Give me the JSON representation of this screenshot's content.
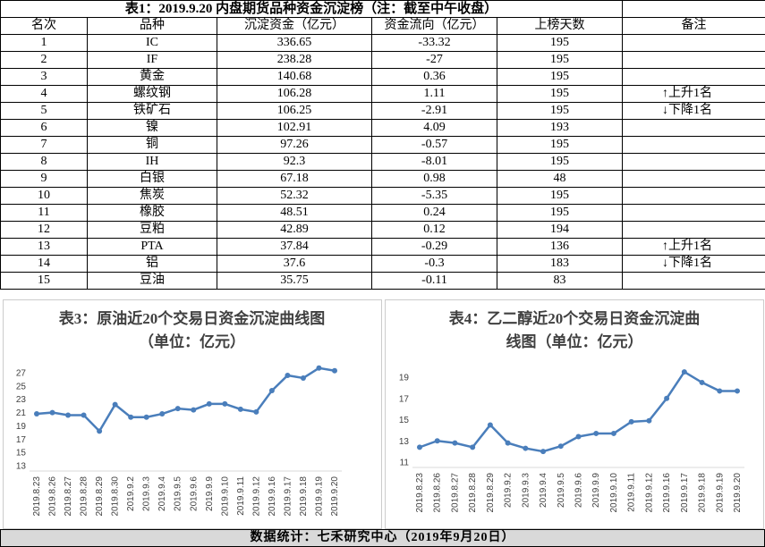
{
  "table": {
    "title": "表1：2019.9.20 内盘期货品种资金沉淀榜（注：截至中午收盘）",
    "headers": [
      "名次",
      "品种",
      "沉淀资金（亿元）",
      "资金流向（亿元）",
      "上榜天数",
      "备注"
    ],
    "rows": [
      {
        "rank": 1,
        "name": "IC",
        "fund": 336.65,
        "flow": -33.32,
        "days": 195
      },
      {
        "rank": 2,
        "name": "IF",
        "fund": 238.28,
        "flow": -27,
        "days": 195
      },
      {
        "rank": 3,
        "name": "黄金",
        "fund": 140.68,
        "flow": 0.36,
        "days": 195
      },
      {
        "rank": 4,
        "name": "螺纹钢",
        "fund": 106.28,
        "flow": 1.11,
        "days": 195,
        "note": "↑上升1名"
      },
      {
        "rank": 5,
        "name": "铁矿石",
        "fund": 106.25,
        "flow": -2.91,
        "days": 195,
        "note": "↓下降1名"
      },
      {
        "rank": 6,
        "name": "镍",
        "fund": 102.91,
        "flow": 4.09,
        "days": 193
      },
      {
        "rank": 7,
        "name": "铜",
        "fund": 97.26,
        "flow": -0.57,
        "days": 195
      },
      {
        "rank": 8,
        "name": "IH",
        "fund": 92.3,
        "flow": -8.01,
        "days": 195
      },
      {
        "rank": 9,
        "name": "白银",
        "fund": 67.18,
        "flow": 0.98,
        "days": 48
      },
      {
        "rank": 10,
        "name": "焦炭",
        "fund": 52.32,
        "flow": -5.35,
        "days": 195
      },
      {
        "rank": 11,
        "name": "橡胶",
        "fund": 48.51,
        "flow": 0.24,
        "days": 195
      },
      {
        "rank": 12,
        "name": "豆粕",
        "fund": 42.89,
        "flow": 0.12,
        "days": 194
      },
      {
        "rank": 13,
        "name": "PTA",
        "fund": 37.84,
        "flow": -0.29,
        "days": 136,
        "note": "↑上升1名"
      },
      {
        "rank": 14,
        "name": "铝",
        "fund": 37.6,
        "flow": -0.3,
        "days": 183,
        "note": "↓下降1名"
      },
      {
        "rank": 15,
        "name": "豆油",
        "fund": 35.75,
        "flow": -0.11,
        "days": 83
      }
    ]
  },
  "chart_data": [
    {
      "type": "line",
      "title": "表3：原油近20个交易日资金沉淀曲线图（单位：亿元）",
      "categories": [
        "2019.8.23",
        "2019.8.26",
        "2019.8.27",
        "2019.8.28",
        "2019.8.29",
        "2019.8.30",
        "2019.9.2",
        "2019.9.3",
        "2019.9.4",
        "2019.9.5",
        "2019.9.6",
        "2019.9.9",
        "2019.9.10",
        "2019.9.11",
        "2019.9.12",
        "2019.9.16",
        "2019.9.17",
        "2019.9.18",
        "2019.9.19",
        "2019.9.20"
      ],
      "series": [
        {
          "color": "#4a7ebb",
          "values": [
            20.8,
            21.0,
            20.6,
            20.6,
            18.2,
            22.2,
            20.3,
            20.3,
            20.8,
            21.6,
            21.4,
            22.3,
            22.3,
            21.5,
            21.1,
            24.3,
            26.6,
            26.2,
            27.7,
            27.3
          ]
        }
      ],
      "ylim": [
        13,
        27
      ],
      "yticks": [
        13,
        15,
        17,
        19,
        21,
        23,
        25,
        27
      ]
    },
    {
      "type": "line",
      "title": "表4：乙二醇近20个交易日资金沉淀曲线图（单位：亿元）",
      "categories": [
        "2019.8.23",
        "2019.8.26",
        "2019.8.27",
        "2019.8.28",
        "2019.8.29",
        "2019.9.2",
        "2019.9.3",
        "2019.9.4",
        "2019.9.5",
        "2019.9.6",
        "2019.9.9",
        "2019.9.10",
        "2019.9.11",
        "2019.9.12",
        "2019.9.16",
        "2019.9.17",
        "2019.9.18",
        "2019.9.19",
        "2019.9.20"
      ],
      "series": [
        {
          "color": "#4a7ebb",
          "values": [
            12.4,
            13.0,
            12.8,
            12.4,
            14.5,
            12.8,
            12.3,
            12.0,
            12.5,
            13.4,
            13.7,
            13.7,
            14.8,
            14.9,
            17.0,
            19.5,
            18.5,
            17.7,
            17.7
          ]
        }
      ],
      "ylim": [
        11,
        19
      ],
      "yticks": [
        11,
        13,
        15,
        17,
        19
      ]
    }
  ],
  "footer": "数据统计：七禾研究中心（2019年9月20日）"
}
